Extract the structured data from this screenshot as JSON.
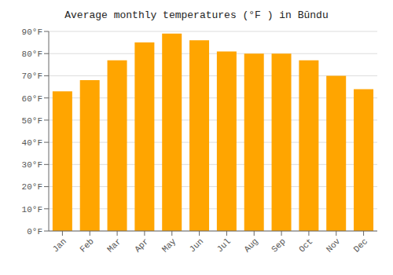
{
  "chart_data": {
    "type": "bar",
    "title": "Average monthly temperatures (°F ) in Būndu",
    "categories": [
      "Jan",
      "Feb",
      "Mar",
      "Apr",
      "May",
      "Jun",
      "Jul",
      "Aug",
      "Sep",
      "Oct",
      "Nov",
      "Dec"
    ],
    "values": [
      63,
      68,
      77,
      85,
      89,
      86,
      81,
      80,
      80,
      77,
      70,
      64
    ],
    "color": "#FFA500",
    "ylim": [
      0,
      90
    ],
    "yticks": [
      {
        "value": 0,
        "label": "0°F"
      },
      {
        "value": 10,
        "label": "10°F"
      },
      {
        "value": 20,
        "label": "20°F"
      },
      {
        "value": 30,
        "label": "30°F"
      },
      {
        "value": 40,
        "label": "40°F"
      },
      {
        "value": 50,
        "label": "50°F"
      },
      {
        "value": 60,
        "label": "60°F"
      },
      {
        "value": 70,
        "label": "70°F"
      },
      {
        "value": 80,
        "label": "80°F"
      },
      {
        "value": 90,
        "label": "90°F"
      }
    ],
    "grid": true
  }
}
